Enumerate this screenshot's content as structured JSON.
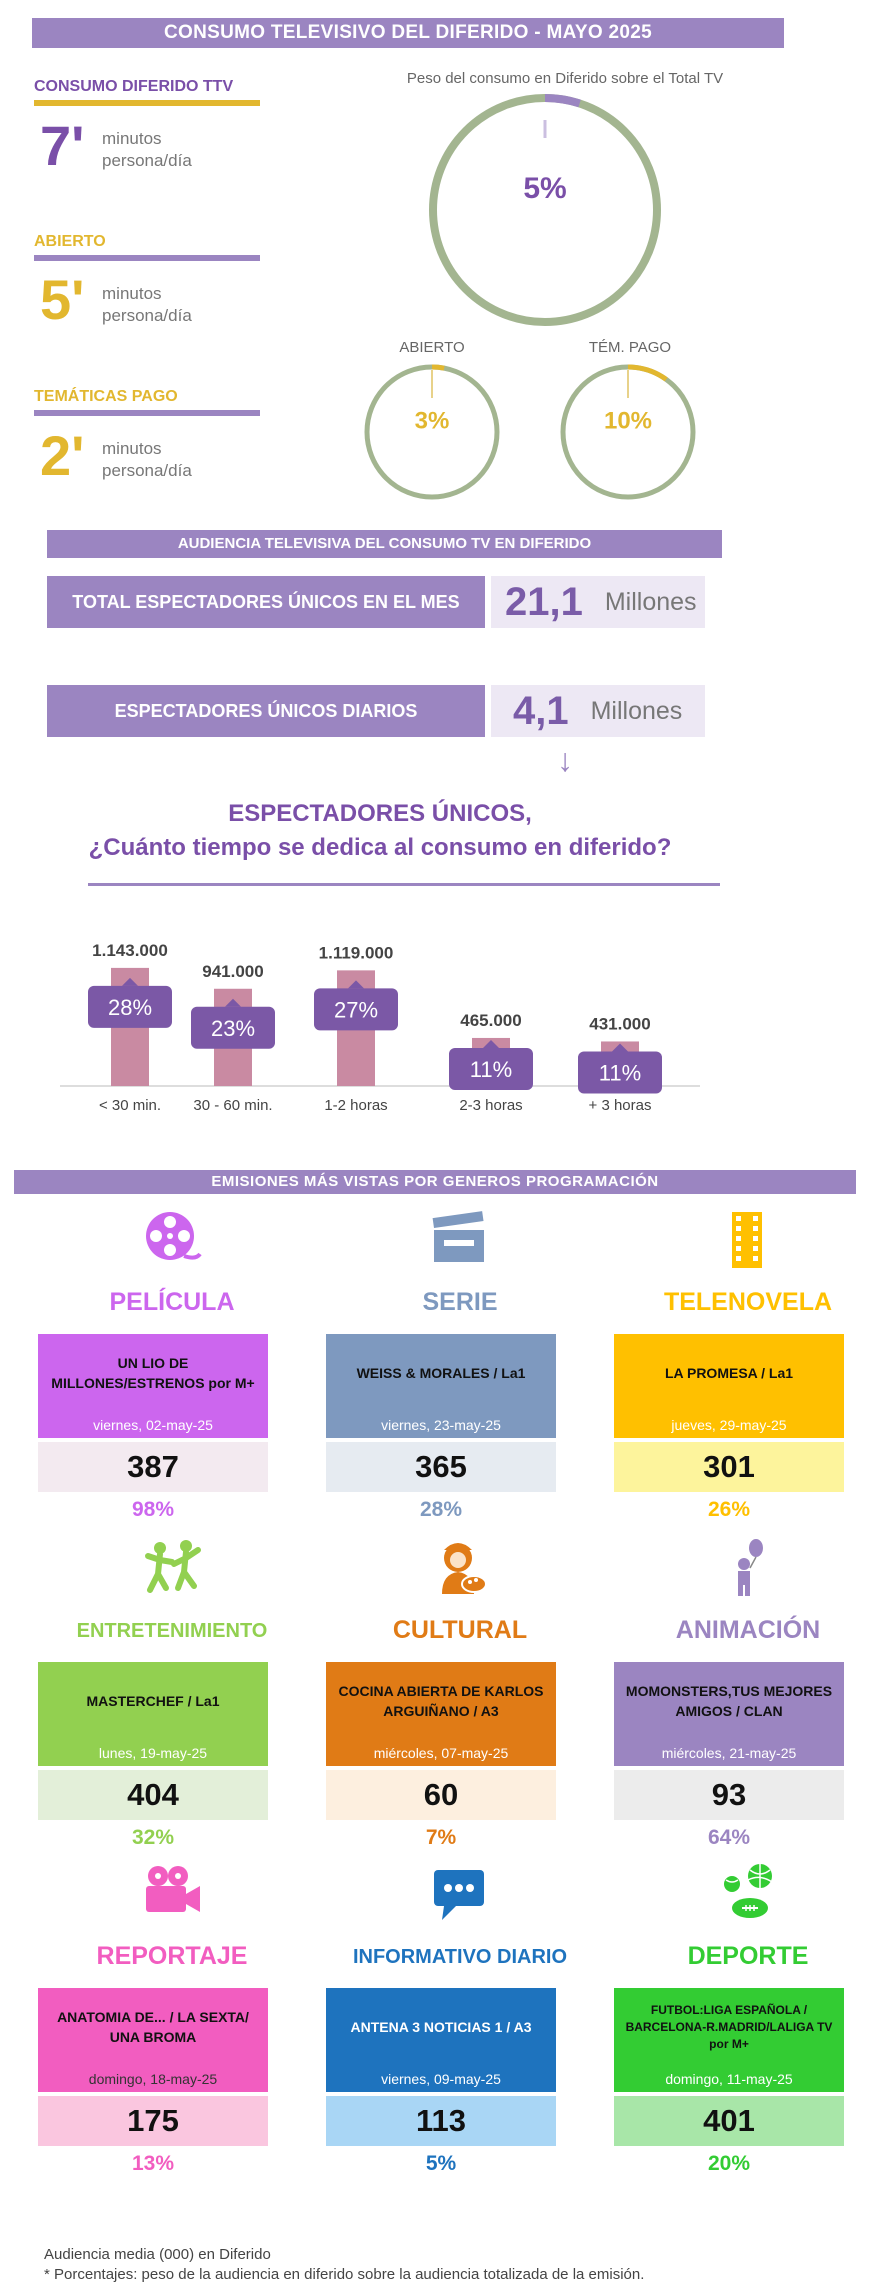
{
  "header": {
    "title": "CONSUMO TELEVISIVO DEL DIFERIDO - MAYO 2025"
  },
  "colors": {
    "purple": "#9b85c1",
    "dark_purple": "#7a4fa8",
    "gold": "#e2b72f",
    "sage": "#a3b590"
  },
  "consumo": {
    "total": {
      "label": "CONSUMO DIFERIDO TTV",
      "value": "7'",
      "unit1": "minutos",
      "unit2": "persona/día"
    },
    "abierto": {
      "label": "ABIERTO",
      "value": "5'",
      "unit1": "minutos",
      "unit2": "persona/día"
    },
    "pago": {
      "label": "TEMÁTICAS PAGO",
      "value": "2'",
      "unit1": "minutos",
      "unit2": "persona/día"
    }
  },
  "peso": {
    "title": "Peso del consumo en Diferido sobre el Total TV",
    "total": {
      "pct": "5%",
      "fraction": 0.05
    },
    "abierto": {
      "label": "ABIERTO",
      "pct": "3%",
      "fraction": 0.03
    },
    "pago": {
      "label": "TÉM. PAGO",
      "pct": "10%",
      "fraction": 0.1
    }
  },
  "audiencia": {
    "title": "AUDIENCIA TELEVISIVA DEL CONSUMO TV EN DIFERIDO",
    "mes": {
      "label": "TOTAL ESPECTADORES ÚNICOS EN EL MES",
      "value": "21,1",
      "unit": "Millones"
    },
    "diarios": {
      "label": "ESPECTADORES ÚNICOS DIARIOS",
      "value": "4,1",
      "unit": "Millones"
    },
    "arrow": "↓"
  },
  "espectadores": {
    "title1": "ESPECTADORES ÚNICOS,",
    "title2": "¿Cuánto tiempo se dedica al consumo en diferido?"
  },
  "chart_data": {
    "type": "bar",
    "categories": [
      "< 30 min.",
      "30 - 60 min.",
      "1-2 horas",
      "2-3 horas",
      "+ 3 horas"
    ],
    "values": [
      1143000,
      941000,
      1119000,
      465000,
      431000
    ],
    "value_labels": [
      "1.143.000",
      "941.000",
      "1.119.000",
      "465.000",
      "431.000"
    ],
    "pct_labels": [
      "28%",
      "23%",
      "27%",
      "11%",
      "11%"
    ],
    "title": "",
    "xlabel": "",
    "ylabel": "",
    "ylim": [
      0,
      1200000
    ]
  },
  "generos": {
    "title": "EMISIONES MÁS VISTAS POR GENEROS PROGRAMACIÓN",
    "items": [
      {
        "name": "PELÍCULA",
        "icon": "film-reel-icon",
        "program": "UN LIO DE MILLONES/ESTRENOS por M+",
        "date": "viernes, 02-may-25",
        "value": "387",
        "pct": "98%",
        "color": "#cc66ee",
        "light": "#f3eaf0",
        "date_color": "#ffffff"
      },
      {
        "name": "SERIE",
        "icon": "clapperboard-icon",
        "program": "WEISS & MORALES / La1",
        "date": "viernes, 23-may-25",
        "value": "365",
        "pct": "28%",
        "color": "#7e99bf",
        "light": "#e6ebf1",
        "date_color": "#ffffff"
      },
      {
        "name": "TELENOVELA",
        "icon": "film-strip-icon",
        "program": "LA PROMESA / La1",
        "date": "jueves, 29-may-25",
        "value": "301",
        "pct": "26%",
        "color": "#ffc000",
        "light": "#fdf49c",
        "date_color": "#ffffff"
      },
      {
        "name": "ENTRETENIMIENTO",
        "icon": "dancers-icon",
        "program": "MASTERCHEF / La1",
        "date": "lunes, 19-may-25",
        "value": "404",
        "pct": "32%",
        "color": "#92d050",
        "light": "#e3efd9",
        "date_color": "#ffffff"
      },
      {
        "name": "CULTURAL",
        "icon": "painter-icon",
        "program": "COCINA ABIERTA DE KARLOS ARGUIÑANO / A3",
        "date": "miércoles, 07-may-25",
        "value": "60",
        "pct": "7%",
        "color": "#e07b16",
        "light": "#fdefdf",
        "date_color": "#ffffff"
      },
      {
        "name": "ANIMACIÓN",
        "icon": "balloon-kid-icon",
        "program": "MOMONSTERS,TUS MEJORES AMIGOS / CLAN",
        "date": "miércoles, 21-may-25",
        "value": "93",
        "pct": "64%",
        "color": "#9b85c1",
        "light": "#ececec",
        "date_color": "#ffffff"
      },
      {
        "name": "REPORTAJE",
        "icon": "video-camera-icon",
        "program": "ANATOMIA DE... / LA SEXTA/ UNA BROMA",
        "date": "domingo, 18-may-25",
        "value": "175",
        "pct": "13%",
        "color": "#f25dc0",
        "light": "#fac6df",
        "date_color": "#333333"
      },
      {
        "name": "INFORMATIVO DIARIO",
        "icon": "speech-bubble-icon",
        "program": "ANTENA 3 NOTICIAS 1 / A3",
        "date": "viernes, 09-may-25",
        "value": "113",
        "pct": "5%",
        "color": "#1e73be",
        "light": "#a9d6f5",
        "date_color": "#ffffff"
      },
      {
        "name": "DEPORTE",
        "icon": "sports-balls-icon",
        "program": "FUTBOL:LIGA ESPAÑOLA / BARCELONA-R.MADRID/LALIGA TV por M+",
        "date": "domingo, 11-may-25",
        "value": "401",
        "pct": "20%",
        "color": "#33cc33",
        "light": "#a8e6a8",
        "date_color": "#ffffff"
      }
    ]
  },
  "footnotes": {
    "line1": "Audiencia media (000) en Diferido",
    "line2": "* Porcentajes: peso de la audiencia en diferido sobre la audiencia totalizada de la emisión."
  }
}
